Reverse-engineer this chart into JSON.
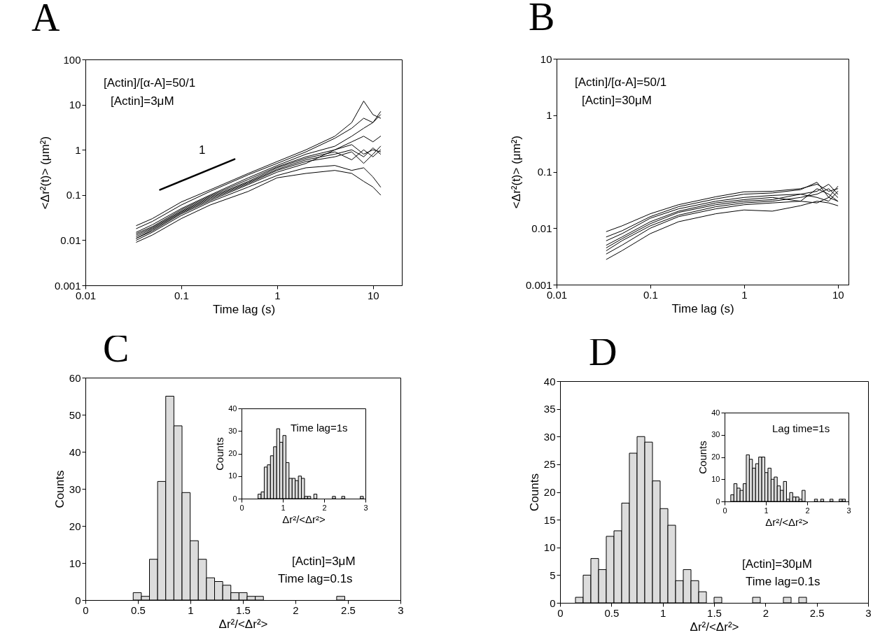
{
  "chart_data": [
    {
      "type": "line",
      "title": "A",
      "xlabel": "Time lag (s)",
      "ylabel": "<Δr²(t)> (μm²)",
      "log": "xy",
      "xlim": [
        0.01,
        20
      ],
      "ylim": [
        0.001,
        100
      ],
      "xticks": [
        0.01,
        0.1,
        1,
        10
      ],
      "yticks": [
        0.001,
        0.01,
        0.1,
        1,
        10,
        100
      ],
      "x": [
        0.034,
        0.05,
        0.1,
        0.2,
        0.5,
        1,
        2,
        4,
        6,
        8,
        10,
        12
      ],
      "series": [
        {
          "color": "#000000",
          "values": [
            0.021,
            0.03,
            0.07,
            0.13,
            0.3,
            0.55,
            1,
            2,
            4,
            12,
            6,
            5
          ]
        },
        {
          "color": "#000000",
          "values": [
            0.018,
            0.026,
            0.06,
            0.12,
            0.28,
            0.5,
            0.9,
            1.8,
            3,
            5,
            4,
            7
          ]
        },
        {
          "color": "#000000",
          "values": [
            0.015,
            0.022,
            0.05,
            0.1,
            0.24,
            0.45,
            0.8,
            1.2,
            2,
            3,
            4,
            6
          ]
        },
        {
          "color": "#000000",
          "values": [
            0.014,
            0.02,
            0.047,
            0.095,
            0.22,
            0.42,
            0.7,
            1,
            1.3,
            0.8,
            1,
            0.9
          ]
        },
        {
          "color": "#000000",
          "values": [
            0.013,
            0.019,
            0.044,
            0.09,
            0.2,
            0.4,
            0.65,
            0.9,
            0.6,
            1,
            0.7,
            1
          ]
        },
        {
          "color": "#000000",
          "values": [
            0.012,
            0.018,
            0.042,
            0.085,
            0.19,
            0.37,
            0.6,
            0.8,
            1,
            0.7,
            1.1,
            0.8
          ]
        },
        {
          "color": "#000000",
          "values": [
            0.011,
            0.017,
            0.04,
            0.08,
            0.18,
            0.35,
            0.55,
            0.7,
            0.9,
            0.5,
            0.8,
            1.2
          ]
        },
        {
          "color": "#000000",
          "values": [
            0.011,
            0.016,
            0.038,
            0.075,
            0.17,
            0.32,
            0.5,
            1,
            1.5,
            2,
            1.5,
            2
          ]
        },
        {
          "color": "#000000",
          "values": [
            0.01,
            0.015,
            0.035,
            0.07,
            0.15,
            0.27,
            0.4,
            0.45,
            0.35,
            0.4,
            0.25,
            0.15
          ]
        },
        {
          "color": "#000000",
          "values": [
            0.009,
            0.013,
            0.03,
            0.06,
            0.12,
            0.24,
            0.3,
            0.35,
            0.3,
            0.2,
            0.15,
            0.1
          ]
        },
        {
          "type": "line",
          "color": "#000000",
          "x": [
            0.06,
            0.36
          ],
          "values": [
            0.13,
            0.62
          ]
        }
      ],
      "annotations": [
        "[Actin]/[α-A]=50/1",
        "[Actin]=3μM",
        "1"
      ]
    },
    {
      "type": "line",
      "title": "B",
      "xlabel": "Time lag (s)",
      "ylabel": "<Δr²(t)> (μm²)",
      "log": "xy",
      "xlim": [
        0.01,
        13
      ],
      "ylim": [
        0.001,
        10
      ],
      "xticks": [
        0.01,
        0.1,
        1,
        10
      ],
      "yticks": [
        0.001,
        0.01,
        0.1,
        1,
        10
      ],
      "x": [
        0.034,
        0.05,
        0.1,
        0.2,
        0.5,
        1,
        2,
        4,
        6,
        8,
        10
      ],
      "series": [
        {
          "color": "#000000",
          "values": [
            0.0087,
            0.011,
            0.018,
            0.026,
            0.036,
            0.044,
            0.045,
            0.05,
            0.06,
            0.045,
            0.05
          ]
        },
        {
          "color": "#000000",
          "values": [
            0.007,
            0.009,
            0.016,
            0.024,
            0.033,
            0.04,
            0.042,
            0.048,
            0.065,
            0.035,
            0.055
          ]
        },
        {
          "color": "#000000",
          "values": [
            0.006,
            0.008,
            0.015,
            0.022,
            0.03,
            0.035,
            0.038,
            0.04,
            0.045,
            0.06,
            0.04
          ]
        },
        {
          "color": "#000000",
          "values": [
            0.005,
            0.007,
            0.013,
            0.02,
            0.028,
            0.032,
            0.035,
            0.03,
            0.05,
            0.04,
            0.03
          ]
        },
        {
          "color": "#000000",
          "values": [
            0.0045,
            0.0065,
            0.012,
            0.019,
            0.026,
            0.03,
            0.032,
            0.04,
            0.035,
            0.03,
            0.045
          ]
        },
        {
          "color": "#000000",
          "values": [
            0.004,
            0.006,
            0.011,
            0.017,
            0.024,
            0.028,
            0.03,
            0.035,
            0.04,
            0.05,
            0.035
          ]
        },
        {
          "color": "#000000",
          "values": [
            0.0035,
            0.005,
            0.01,
            0.016,
            0.022,
            0.026,
            0.028,
            0.03,
            0.028,
            0.035,
            0.03
          ]
        },
        {
          "color": "#000000",
          "values": [
            0.0028,
            0.004,
            0.008,
            0.013,
            0.018,
            0.021,
            0.02,
            0.025,
            0.03,
            0.028,
            0.025
          ]
        }
      ],
      "annotations": [
        "[Actin]/[α-A]=50/1",
        "[Actin]=30μM"
      ]
    },
    {
      "type": "histogram",
      "title": "C",
      "xlabel": "Δr²/<Δr²>",
      "ylabel": "Counts",
      "xlim": [
        0,
        3
      ],
      "ylim": [
        0,
        60
      ],
      "xticks": [
        0,
        0.5,
        1,
        1.5,
        2,
        2.5,
        3
      ],
      "yticks": [
        0,
        10,
        20,
        30,
        40,
        50,
        60
      ],
      "color": "#dcdcdc",
      "bins": [
        0.455,
        0.5325,
        0.61,
        0.6875,
        0.765,
        0.8425,
        0.92,
        0.9975,
        1.075,
        1.1525,
        1.23,
        1.3075,
        1.385,
        1.4625,
        1.54,
        1.6175,
        1.695,
        1.7725,
        1.85,
        1.9275,
        2.005,
        2.0825,
        2.16,
        2.2375,
        2.315,
        2.3925,
        2.47
      ],
      "values": [
        2,
        1,
        11,
        32,
        55,
        47,
        29,
        16,
        11,
        6,
        5,
        4,
        2,
        2,
        1,
        1,
        0,
        0,
        0,
        0,
        0,
        0,
        0,
        0,
        0,
        1
      ],
      "annotations": [
        "[Actin]=3μM",
        "Time lag=0.1s"
      ]
    },
    {
      "type": "histogram",
      "xlabel": "Δr²/<Δr²>",
      "ylabel": "Counts",
      "xlim": [
        0,
        3
      ],
      "ylim": [
        0,
        40
      ],
      "xticks": [
        0,
        1,
        2,
        3
      ],
      "yticks": [
        0,
        10,
        20,
        30,
        40
      ],
      "color": "#dcdcdc",
      "bins": [
        0.4,
        0.475,
        0.55,
        0.625,
        0.7,
        0.775,
        0.85,
        0.925,
        1,
        1.075,
        1.15,
        1.225,
        1.3,
        1.375,
        1.45,
        1.525,
        1.6,
        1.675,
        1.75,
        1.825,
        1.9,
        1.975,
        2.05,
        2.125,
        2.2,
        2.275,
        2.35,
        2.425,
        2.5,
        2.575,
        2.65,
        2.725,
        2.8,
        2.875,
        2.95
      ],
      "values": [
        2,
        3,
        14,
        15,
        19,
        23,
        31,
        25,
        28,
        16,
        9,
        9,
        8,
        10,
        9,
        1,
        1,
        0,
        2,
        0,
        0,
        0,
        0,
        0,
        1,
        0,
        0,
        1,
        0,
        0,
        0,
        0,
        0,
        1
      ],
      "annotations": [
        "Time lag=1s"
      ]
    },
    {
      "type": "histogram",
      "title": "D",
      "xlabel": "Δr²/<Δr²>",
      "ylabel": "Counts",
      "xlim": [
        0,
        3
      ],
      "ylim": [
        0,
        40
      ],
      "xticks": [
        0,
        0.5,
        1,
        1.5,
        2,
        2.5,
        3
      ],
      "yticks": [
        0,
        5,
        10,
        15,
        20,
        25,
        30,
        35,
        40
      ],
      "color": "#dcdcdc",
      "bins": [
        0.15,
        0.225,
        0.3,
        0.375,
        0.45,
        0.525,
        0.6,
        0.675,
        0.75,
        0.825,
        0.9,
        0.975,
        1.05,
        1.125,
        1.2,
        1.275,
        1.35,
        1.425,
        1.5,
        1.575,
        1.65,
        1.725,
        1.8,
        1.875,
        1.95,
        2.025,
        2.1,
        2.175,
        2.25,
        2.325,
        2.4
      ],
      "values": [
        1,
        5,
        8,
        6,
        12,
        13,
        18,
        27,
        30,
        29,
        22,
        17,
        14,
        4,
        6,
        4,
        2,
        0,
        1,
        0,
        0,
        0,
        0,
        1,
        0,
        0,
        0,
        1,
        0,
        1
      ],
      "annotations": [
        "[Actin]=30μM",
        "Time lag=0.1s"
      ]
    },
    {
      "type": "histogram",
      "xlabel": "Δr²/<Δr²>",
      "ylabel": "Counts",
      "xlim": [
        0,
        3
      ],
      "ylim": [
        0,
        40
      ],
      "xticks": [
        0,
        1,
        2,
        3
      ],
      "yticks": [
        0,
        10,
        20,
        30,
        40
      ],
      "color": "#dcdcdc",
      "bins": [
        0.15,
        0.225,
        0.3,
        0.375,
        0.45,
        0.525,
        0.6,
        0.675,
        0.75,
        0.825,
        0.9,
        0.975,
        1.05,
        1.125,
        1.2,
        1.275,
        1.35,
        1.425,
        1.5,
        1.575,
        1.65,
        1.725,
        1.8,
        1.875,
        1.95,
        2.025,
        2.1,
        2.175,
        2.25,
        2.325,
        2.4,
        2.475,
        2.55,
        2.625,
        2.7,
        2.775,
        2.85,
        2.925
      ],
      "values": [
        3,
        8,
        6,
        5,
        8,
        21,
        19,
        15,
        17,
        20,
        20,
        13,
        15,
        10,
        11,
        7,
        5,
        9,
        1,
        4,
        2,
        2,
        1,
        5,
        0,
        0,
        0,
        1,
        0,
        1,
        0,
        0,
        1,
        0,
        0,
        1,
        1
      ],
      "annotations": [
        "Lag time=1s"
      ]
    }
  ]
}
